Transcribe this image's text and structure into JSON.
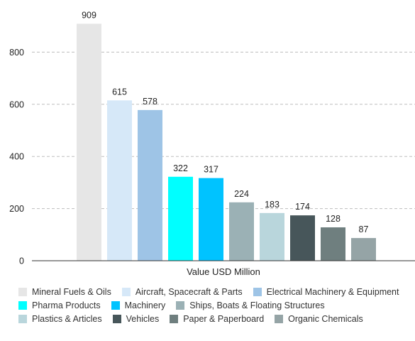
{
  "chart_data": {
    "type": "bar",
    "xlabel": "Value USD Million",
    "ylim": [
      0,
      1000
    ],
    "yticks": [
      0,
      200,
      400,
      600,
      800
    ],
    "grid": true,
    "legend_position": "bottom",
    "series": [
      {
        "name": "Mineral Fuels & Oils",
        "value": 909,
        "color": "#e6e6e6"
      },
      {
        "name": "Aircraft, Spacecraft & Parts",
        "value": 615,
        "color": "#d6e8f8"
      },
      {
        "name": "Electrical Machinery & Equipment",
        "value": 578,
        "color": "#9ec4e6"
      },
      {
        "name": "Pharma Products",
        "value": 322,
        "color": "#00ffff"
      },
      {
        "name": "Machinery",
        "value": 317,
        "color": "#00c3ff"
      },
      {
        "name": "Ships, Boats & Floating Structures",
        "value": 224,
        "color": "#9bb1b5"
      },
      {
        "name": "Plastics & Articles",
        "value": 183,
        "color": "#b9d6dc"
      },
      {
        "name": "Vehicles",
        "value": 174,
        "color": "#47565a"
      },
      {
        "name": "Paper & Paperboard",
        "value": 128,
        "color": "#6f7f7f"
      },
      {
        "name": "Organic Chemicals",
        "value": 87,
        "color": "#95a4a6"
      }
    ]
  }
}
